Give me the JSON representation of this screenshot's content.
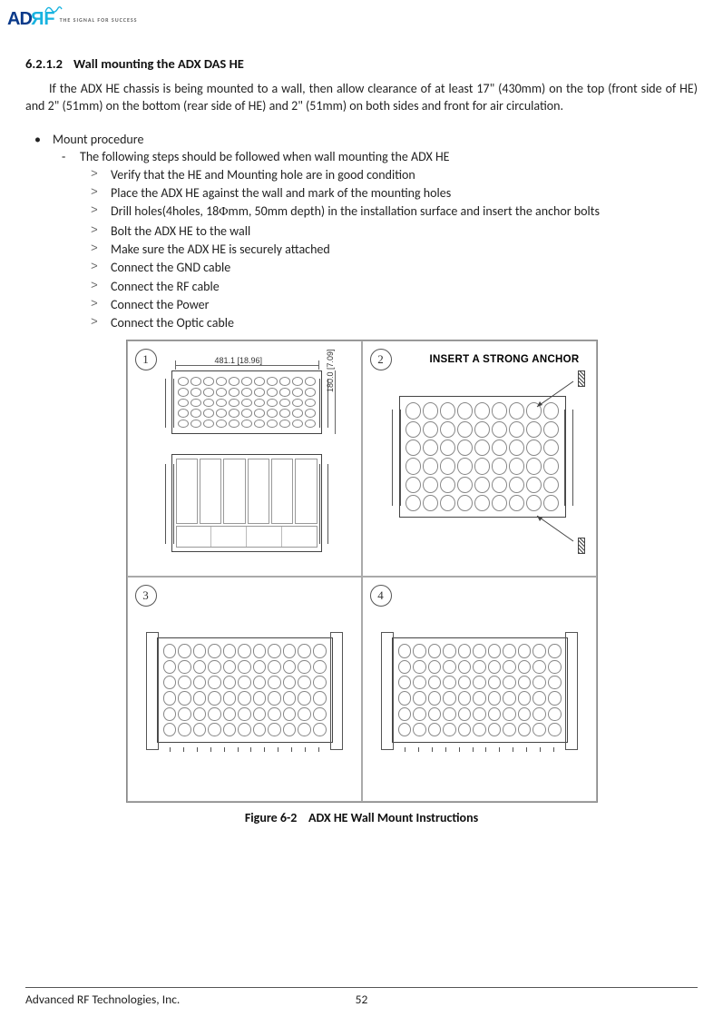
{
  "header": {
    "logo_letters": [
      "A",
      "D",
      "R",
      "F"
    ],
    "tagline": "THE SIGNAL FOR SUCCESS"
  },
  "section": {
    "number": "6.2.1.2",
    "title": "Wall mounting the ADX DAS HE"
  },
  "intro": "If the ADX HE chassis is being mounted to a wall, then allow clearance of at least 17\" (430mm) on the top (front side of HE) and 2\" (51mm) on the bottom (rear side of HE) and 2\" (51mm) on both sides and front for air circulation.",
  "bullets": {
    "top": "Mount procedure",
    "sub": "The following steps should be followed when wall mounting the ADX HE",
    "steps": [
      "Verify that the HE and Mounting hole are in good condition",
      "Place the ADX HE against the wall and mark of the mounting holes",
      "Drill holes(4holes, 18Φmm, 50mm depth) in the installation surface and insert the anchor bolts",
      "Bolt the ADX HE to the wall",
      "Make sure the ADX HE is securely attached",
      "Connect the GND cable",
      "Connect the RF cable",
      "Connect the Power",
      "Connect the Optic cable"
    ]
  },
  "figure": {
    "panels": {
      "1": {
        "badge": "1",
        "dim_w": "481.1 [18.96]",
        "dim_h": "180.0 [7.09]"
      },
      "2": {
        "badge": "2",
        "label": "INSERT A STRONG ANCHOR"
      },
      "3": {
        "badge": "3"
      },
      "4": {
        "badge": "4"
      }
    },
    "caption_label": "Figure 6-2",
    "caption_text": "ADX HE Wall Mount Instructions",
    "style": {
      "border_color": "#888",
      "line_color": "#444",
      "vent_cols": 11,
      "vent_rows": 5,
      "badge_border": "#555"
    }
  },
  "footer": {
    "company": "Advanced RF Technologies, Inc.",
    "page": "52"
  }
}
